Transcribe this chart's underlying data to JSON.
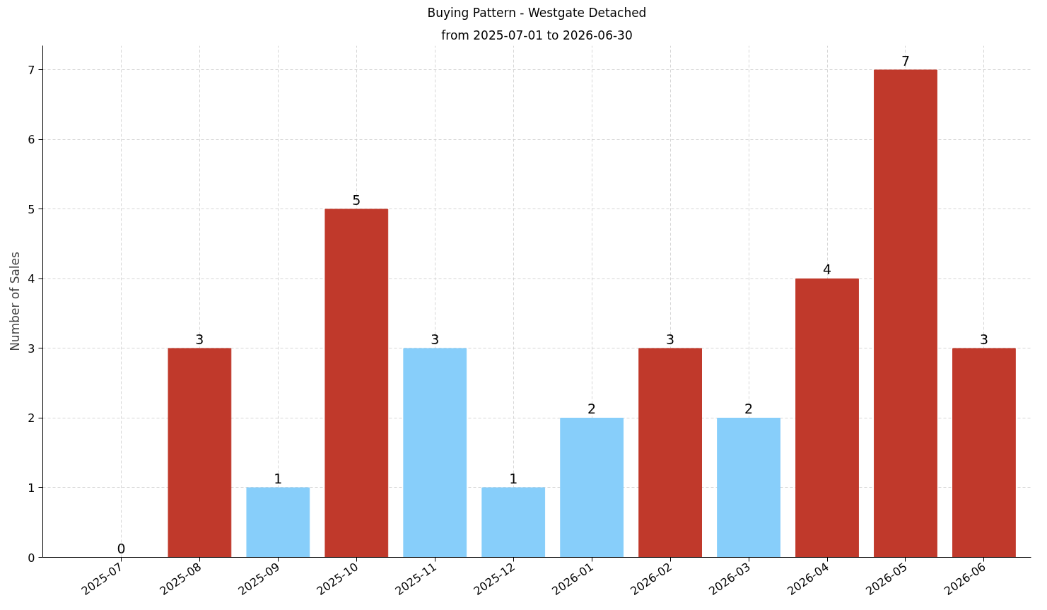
{
  "chart_data": {
    "type": "bar",
    "title": "Buying Pattern - Westgate Detached",
    "subtitle": "from 2025-07-01 to 2026-06-30",
    "ylabel": "Number of Sales",
    "categories": [
      "2025-07",
      "2025-08",
      "2025-09",
      "2025-10",
      "2025-11",
      "2025-12",
      "2026-01",
      "2026-02",
      "2026-03",
      "2026-04",
      "2026-05",
      "2026-06"
    ],
    "values": [
      0,
      3,
      1,
      5,
      3,
      1,
      2,
      3,
      2,
      4,
      7,
      3
    ],
    "colors": [
      "#c0392b",
      "#c0392b",
      "#87cefa",
      "#c0392b",
      "#87cefa",
      "#87cefa",
      "#87cefa",
      "#c0392b",
      "#87cefa",
      "#c0392b",
      "#c0392b",
      "#c0392b"
    ],
    "ylim": [
      0,
      7.35
    ],
    "yticks": [
      0,
      1,
      2,
      3,
      4,
      5,
      6,
      7
    ],
    "grid": true,
    "data_labels": true
  }
}
